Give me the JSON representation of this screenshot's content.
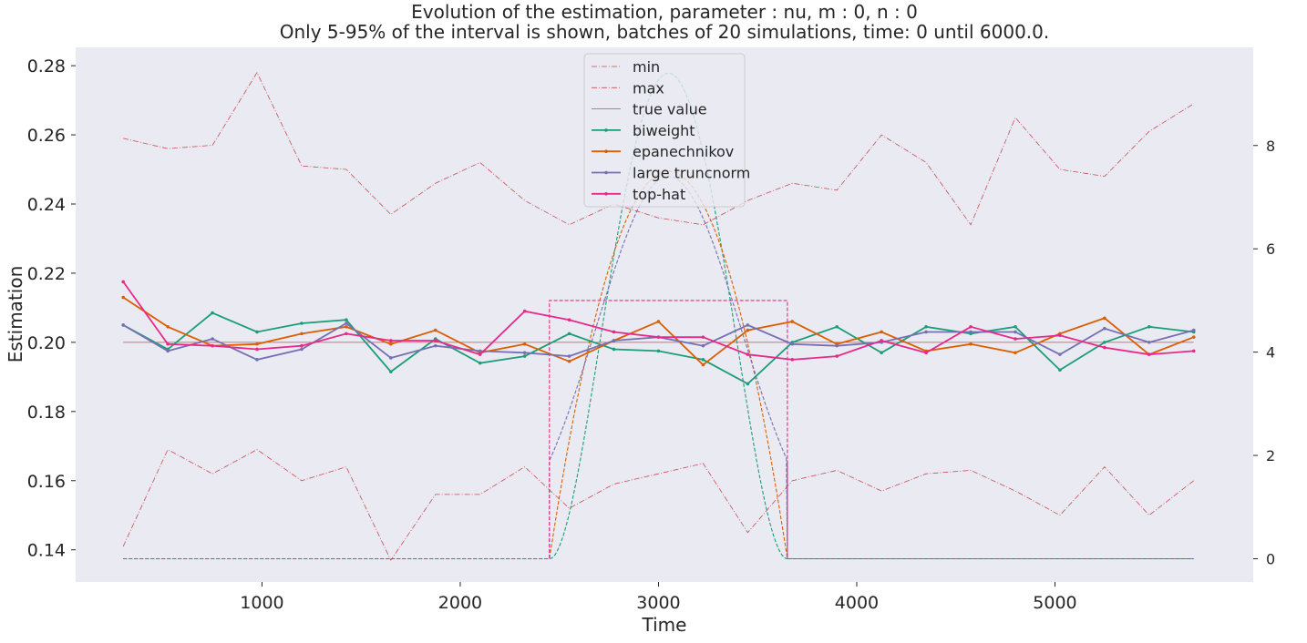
{
  "chart_data": {
    "type": "line",
    "title_line1": "Evolution of the estimation, parameter : nu, m : 0, n : 0",
    "title_line2": "Only 5-95% of the interval is shown, batches of 20 simulations, time: 0 until 6000.0.",
    "xlabel": "Time",
    "ylabel": "Estimation",
    "xlim": [
      60,
      6000
    ],
    "ylim": [
      0.1307,
      0.2853
    ],
    "y2lim": [
      -0.45,
      9.9
    ],
    "xticks": [
      1000,
      2000,
      3000,
      4000,
      5000
    ],
    "yticks": [
      0.14,
      0.16,
      0.18,
      0.2,
      0.22,
      0.24,
      0.26,
      0.28
    ],
    "ytick_labels": [
      "0.14",
      "0.16",
      "0.18",
      "0.20",
      "0.22",
      "0.24",
      "0.26",
      "0.28"
    ],
    "y2ticks": [
      0,
      2,
      4,
      6,
      8
    ],
    "grid": false,
    "legend_position": "upper-center",
    "background": "#eaeaf2",
    "x": [
      300,
      525,
      750,
      975,
      1200,
      1425,
      1650,
      1875,
      2100,
      2325,
      2550,
      2775,
      3000,
      3225,
      3450,
      3675,
      3900,
      4125,
      4350,
      4575,
      4800,
      5025,
      5250,
      5475,
      5700
    ],
    "series": [
      {
        "name": "min",
        "color": "#c44e52",
        "dash": "dashdot",
        "values": [
          0.141,
          0.169,
          0.162,
          0.169,
          0.16,
          0.164,
          0.137,
          0.156,
          0.156,
          0.164,
          0.152,
          0.159,
          0.162,
          0.165,
          0.145,
          0.16,
          0.163,
          0.157,
          0.162,
          0.163,
          0.157,
          0.15,
          0.164,
          0.15,
          0.16
        ]
      },
      {
        "name": "max",
        "color": "#c44e52",
        "dash": "dashdot",
        "values": [
          0.259,
          0.256,
          0.257,
          0.278,
          0.251,
          0.25,
          0.237,
          0.246,
          0.252,
          0.241,
          0.234,
          0.24,
          0.236,
          0.234,
          0.241,
          0.246,
          0.244,
          0.26,
          0.252,
          0.234,
          0.265,
          0.25,
          0.248,
          0.261,
          0.269
        ]
      },
      {
        "name": "true value",
        "color": "#c44e52",
        "dash": "solid-thin",
        "values": [
          0.2,
          0.2,
          0.2,
          0.2,
          0.2,
          0.2,
          0.2,
          0.2,
          0.2,
          0.2,
          0.2,
          0.2,
          0.2,
          0.2,
          0.2,
          0.2,
          0.2,
          0.2,
          0.2,
          0.2,
          0.2,
          0.2,
          0.2,
          0.2,
          0.2
        ]
      },
      {
        "name": "biweight",
        "color": "#1b9e77",
        "dash": "solid",
        "values": [
          0.205,
          0.198,
          0.2085,
          0.203,
          0.2055,
          0.2065,
          0.1915,
          0.201,
          0.194,
          0.196,
          0.2025,
          0.198,
          0.1975,
          0.195,
          0.188,
          0.2,
          0.2045,
          0.197,
          0.2045,
          0.2025,
          0.2045,
          0.192,
          0.2,
          0.2045,
          0.203
        ]
      },
      {
        "name": "epanechnikov",
        "color": "#d95f02",
        "dash": "solid",
        "values": [
          0.213,
          0.2045,
          0.199,
          0.1995,
          0.2025,
          0.2045,
          0.1995,
          0.2035,
          0.197,
          0.1995,
          0.1945,
          0.2005,
          0.206,
          0.1935,
          0.2035,
          0.206,
          0.1995,
          0.203,
          0.1975,
          0.1995,
          0.197,
          0.2025,
          0.207,
          0.1965,
          0.2015
        ]
      },
      {
        "name": "large truncnorm",
        "color": "#7570b3",
        "dash": "solid",
        "values": [
          0.205,
          0.1975,
          0.201,
          0.195,
          0.198,
          0.2055,
          0.1955,
          0.199,
          0.1975,
          0.197,
          0.196,
          0.2005,
          0.2015,
          0.199,
          0.205,
          0.1995,
          0.199,
          0.2,
          0.203,
          0.203,
          0.203,
          0.1965,
          0.204,
          0.2,
          0.2035
        ]
      },
      {
        "name": "top-hat",
        "color": "#e7298a",
        "dash": "solid",
        "values": [
          0.2175,
          0.1995,
          0.199,
          0.198,
          0.199,
          0.2025,
          0.2005,
          0.2005,
          0.1965,
          0.209,
          0.2065,
          0.203,
          0.2015,
          0.2015,
          0.1965,
          0.195,
          0.196,
          0.2005,
          0.197,
          0.2045,
          0.201,
          0.202,
          0.1985,
          0.1965,
          0.1975
        ]
      }
    ],
    "kernels": {
      "axis": "right",
      "support": [
        2450,
        3650
      ],
      "center": 3050,
      "x_range": [
        300,
        5700
      ],
      "items": [
        {
          "name": "biweight",
          "color": "#1b9e77",
          "peak": 9.4
        },
        {
          "name": "epanechnikov",
          "color": "#d95f02",
          "peak": 7.5
        },
        {
          "name": "large truncnorm",
          "color": "#7570b3",
          "peak": 7.4,
          "edge": 1.9
        },
        {
          "name": "top-hat",
          "color": "#e7298a",
          "peak": 5.0
        }
      ]
    }
  }
}
